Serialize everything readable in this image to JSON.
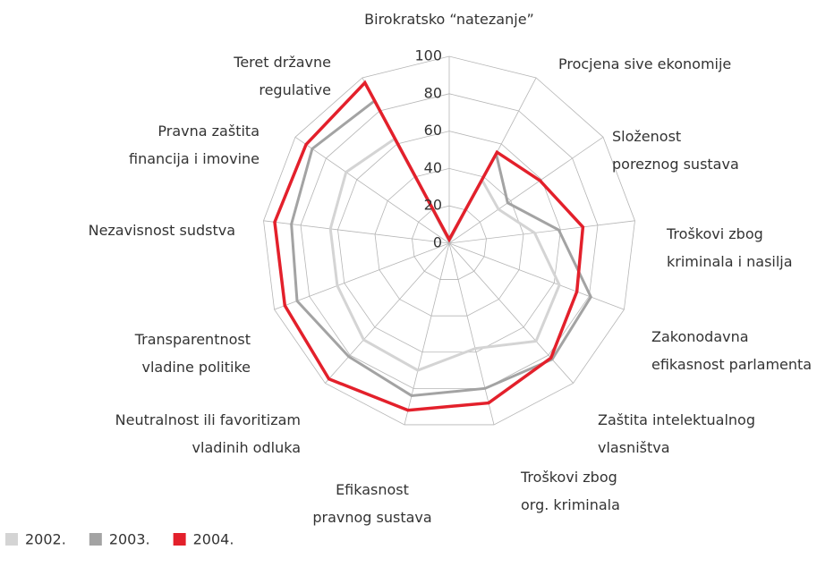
{
  "chart_data": {
    "type": "radar",
    "categories": [
      [
        "Birokratsko “natezanje”"
      ],
      [
        "Procjena sive ekonomije"
      ],
      [
        "Složenost",
        "poreznog sustava"
      ],
      [
        "Troškovi zbog",
        "kriminala i nasilja"
      ],
      [
        "Zakonodavna",
        "efikasnost parlamenta"
      ],
      [
        "Zaštita intelektualnog",
        "vlasništva"
      ],
      [
        "Troškovi zbog",
        "org. kriminala"
      ],
      [
        "Efikasnost",
        "pravnog sustava"
      ],
      [
        "Neutralnost ili favoritizam",
        "vladinih odluka"
      ],
      [
        "Transparentnost",
        "vladine politike"
      ],
      [
        "Nezavisnost sudstva"
      ],
      [
        "Pravna zaštita",
        "financija i imovine"
      ],
      [
        "Teret državne",
        "regulative"
      ]
    ],
    "series": [
      {
        "name": "2002.",
        "color": "#d4d4d4",
        "values": [
          2,
          38,
          32,
          46,
          63,
          70,
          58,
          70,
          69,
          64,
          64,
          67,
          63
        ]
      },
      {
        "name": "2003.",
        "color": "#a3a3a3",
        "values": [
          2,
          54,
          38,
          59,
          81,
          83,
          80,
          84,
          81,
          87,
          85,
          89,
          86
        ]
      },
      {
        "name": "2004.",
        "color": "#e3202b",
        "values": [
          2,
          55,
          59,
          72,
          73,
          82,
          88,
          92,
          97,
          94,
          94,
          93,
          97
        ]
      }
    ],
    "ylim": [
      0,
      100
    ],
    "yticks": [
      0,
      20,
      40,
      60,
      80,
      100
    ],
    "grid": true
  }
}
